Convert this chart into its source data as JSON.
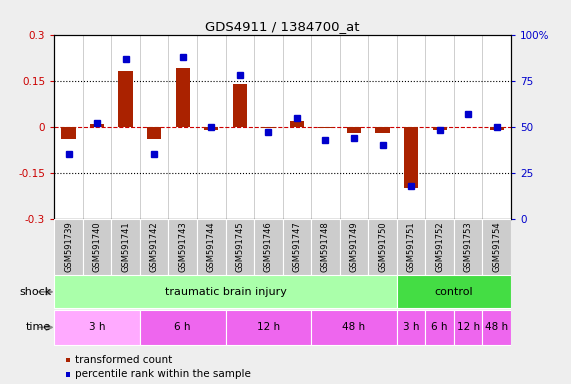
{
  "title": "GDS4911 / 1384700_at",
  "samples": [
    "GSM591739",
    "GSM591740",
    "GSM591741",
    "GSM591742",
    "GSM591743",
    "GSM591744",
    "GSM591745",
    "GSM591746",
    "GSM591747",
    "GSM591748",
    "GSM591749",
    "GSM591750",
    "GSM591751",
    "GSM591752",
    "GSM591753",
    "GSM591754"
  ],
  "transformed_count": [
    -0.04,
    0.01,
    0.18,
    -0.04,
    0.19,
    -0.01,
    0.14,
    -0.005,
    0.02,
    -0.005,
    -0.02,
    -0.02,
    -0.2,
    -0.01,
    0.0,
    -0.01
  ],
  "percentile_rank": [
    35,
    52,
    87,
    35,
    88,
    50,
    78,
    47,
    55,
    43,
    44,
    40,
    18,
    48,
    57,
    50
  ],
  "ylim_left": [
    -0.3,
    0.3
  ],
  "ylim_right": [
    0,
    100
  ],
  "yticks_left": [
    -0.3,
    -0.15,
    0.0,
    0.15,
    0.3
  ],
  "yticks_right": [
    0,
    25,
    50,
    75,
    100
  ],
  "ytick_labels_left": [
    "-0.3",
    "-0.15",
    "0",
    "0.15",
    "0.3"
  ],
  "ytick_labels_right": [
    "0",
    "25",
    "50",
    "75",
    "100%"
  ],
  "hlines": [
    0.15,
    -0.15
  ],
  "bar_color": "#aa2200",
  "dot_color": "#0000cc",
  "zero_line_color": "#cc0000",
  "shock_groups": [
    {
      "label": "traumatic brain injury",
      "start": 0,
      "end": 12,
      "color": "#aaffaa"
    },
    {
      "label": "control",
      "start": 12,
      "end": 16,
      "color": "#44dd44"
    }
  ],
  "time_groups": [
    {
      "label": "3 h",
      "start": 0,
      "end": 3,
      "color": "#ffaaff"
    },
    {
      "label": "6 h",
      "start": 3,
      "end": 6,
      "color": "#ee66ee"
    },
    {
      "label": "12 h",
      "start": 6,
      "end": 9,
      "color": "#ee66ee"
    },
    {
      "label": "48 h",
      "start": 9,
      "end": 12,
      "color": "#ee66ee"
    },
    {
      "label": "3 h",
      "start": 12,
      "end": 13,
      "color": "#ee66ee"
    },
    {
      "label": "6 h",
      "start": 13,
      "end": 14,
      "color": "#ee66ee"
    },
    {
      "label": "12 h",
      "start": 14,
      "end": 15,
      "color": "#ee66ee"
    },
    {
      "label": "48 h",
      "start": 15,
      "end": 16,
      "color": "#ee66ee"
    }
  ],
  "legend_items": [
    {
      "label": "transformed count",
      "color": "#aa2200"
    },
    {
      "label": "percentile rank within the sample",
      "color": "#0000cc"
    }
  ],
  "label_bg_color": "#cccccc",
  "plot_bg_color": "#ffffff",
  "fig_bg_color": "#eeeeee"
}
